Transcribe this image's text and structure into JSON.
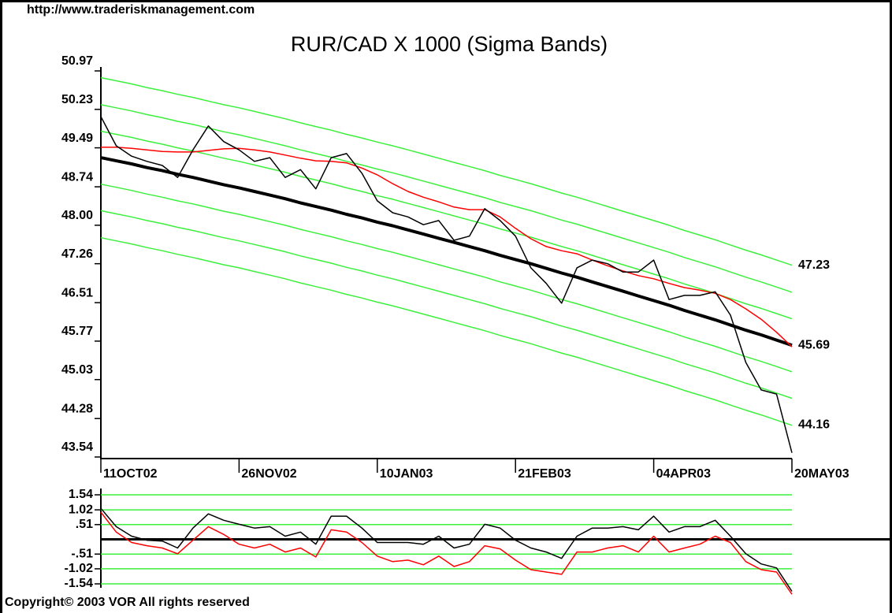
{
  "header": {
    "url": "http://www.traderiskmanagement.com"
  },
  "footer": {
    "copyright": "Copyright© 2003 VOR All rights reserved"
  },
  "chart_data": [
    {
      "type": "line",
      "title": "RUR/CAD X 1000 (Sigma Bands)",
      "categories": [
        "11OCT02",
        null,
        null,
        null,
        null,
        null,
        null,
        null,
        null,
        "26NOV02",
        null,
        null,
        null,
        null,
        null,
        null,
        null,
        null,
        "10JAN03",
        null,
        null,
        null,
        null,
        null,
        null,
        null,
        null,
        "21FEB03",
        null,
        null,
        null,
        null,
        null,
        null,
        null,
        null,
        "04APR03",
        null,
        null,
        null,
        null,
        null,
        null,
        null,
        null,
        "20MAY03"
      ],
      "ylim": [
        43.54,
        50.97
      ],
      "yticks": [
        50.97,
        50.23,
        49.49,
        48.74,
        {
          "value": 48,
          "label": "48.00"
        },
        47.26,
        46.51,
        45.77,
        45.03,
        44.28,
        43.54
      ],
      "annotations": [
        {
          "text": "47.23"
        },
        {
          "text": "45.69"
        },
        {
          "text": "44.16"
        }
      ],
      "series": [
        {
          "color": "#3cf03c",
          "line_width": 1.5,
          "values": [
            50.84,
            50.78,
            50.72,
            50.65,
            50.59,
            50.52,
            50.46,
            50.39,
            50.32,
            50.26,
            50.19,
            50.12,
            50.05,
            49.97,
            49.9,
            49.83,
            49.75,
            49.68,
            49.6,
            49.53,
            49.45,
            49.37,
            49.29,
            49.21,
            49.13,
            49.05,
            48.96,
            48.88,
            48.8,
            48.71,
            48.62,
            48.54,
            48.45,
            48.36,
            48.27,
            48.18,
            48.09,
            48.0,
            47.9,
            47.81,
            47.72,
            47.62,
            47.52,
            47.43,
            47.33,
            47.23
          ]
        },
        {
          "color": "#3cf03c",
          "line_width": 1.5,
          "values": [
            50.32,
            50.26,
            50.2,
            50.13,
            50.07,
            50.0,
            49.94,
            49.87,
            49.8,
            49.74,
            49.67,
            49.6,
            49.53,
            49.45,
            49.38,
            49.31,
            49.23,
            49.16,
            49.08,
            49.01,
            48.93,
            48.85,
            48.77,
            48.69,
            48.61,
            48.53,
            48.44,
            48.36,
            48.28,
            48.19,
            48.1,
            48.02,
            47.93,
            47.84,
            47.75,
            47.66,
            47.57,
            47.48,
            47.38,
            47.29,
            47.2,
            47.1,
            47.0,
            46.91,
            46.81,
            46.71
          ]
        },
        {
          "color": "#3cf03c",
          "line_width": 1.5,
          "values": [
            49.81,
            49.75,
            49.69,
            49.62,
            49.56,
            49.49,
            49.43,
            49.36,
            49.29,
            49.23,
            49.16,
            49.09,
            49.02,
            48.94,
            48.87,
            48.8,
            48.72,
            48.65,
            48.57,
            48.5,
            48.42,
            48.34,
            48.26,
            48.18,
            48.1,
            48.02,
            47.93,
            47.85,
            47.77,
            47.68,
            47.59,
            47.51,
            47.42,
            47.33,
            47.24,
            47.15,
            47.06,
            46.97,
            46.87,
            46.78,
            46.69,
            46.59,
            46.49,
            46.4,
            46.3,
            46.2
          ]
        },
        {
          "color": "#3cf03c",
          "line_width": 1.5,
          "values": [
            48.79,
            48.73,
            48.67,
            48.6,
            48.54,
            48.47,
            48.41,
            48.34,
            48.27,
            48.21,
            48.14,
            48.07,
            48.0,
            47.92,
            47.85,
            47.78,
            47.7,
            47.63,
            47.55,
            47.48,
            47.4,
            47.32,
            47.24,
            47.16,
            47.08,
            47.0,
            46.91,
            46.83,
            46.75,
            46.66,
            46.57,
            46.49,
            46.4,
            46.31,
            46.22,
            46.13,
            46.04,
            45.95,
            45.85,
            45.76,
            45.67,
            45.57,
            45.47,
            45.38,
            45.28,
            45.18
          ]
        },
        {
          "color": "#3cf03c",
          "line_width": 1.5,
          "values": [
            48.28,
            48.22,
            48.16,
            48.09,
            48.03,
            47.96,
            47.9,
            47.83,
            47.76,
            47.7,
            47.63,
            47.56,
            47.49,
            47.41,
            47.34,
            47.27,
            47.19,
            47.12,
            47.04,
            46.97,
            46.89,
            46.81,
            46.73,
            46.65,
            46.57,
            46.49,
            46.4,
            46.32,
            46.24,
            46.15,
            46.06,
            45.98,
            45.89,
            45.8,
            45.71,
            45.62,
            45.53,
            45.44,
            45.34,
            45.25,
            45.16,
            45.06,
            44.96,
            44.87,
            44.77,
            44.67
          ]
        },
        {
          "color": "#3cf03c",
          "line_width": 1.5,
          "values": [
            47.76,
            47.7,
            47.64,
            47.57,
            47.51,
            47.44,
            47.38,
            47.31,
            47.24,
            47.18,
            47.11,
            47.04,
            46.97,
            46.89,
            46.82,
            46.75,
            46.67,
            46.6,
            46.52,
            46.45,
            46.37,
            46.29,
            46.21,
            46.13,
            46.05,
            45.97,
            45.88,
            45.8,
            45.72,
            45.63,
            45.54,
            45.46,
            45.37,
            45.28,
            45.19,
            45.1,
            45.01,
            44.92,
            44.82,
            44.73,
            44.64,
            44.54,
            44.44,
            44.35,
            44.25,
            44.15
          ]
        },
        {
          "color": "#000000",
          "line_width": 4,
          "values": [
            49.3,
            49.24,
            49.18,
            49.11,
            49.05,
            48.98,
            48.92,
            48.85,
            48.78,
            48.72,
            48.65,
            48.58,
            48.51,
            48.43,
            48.36,
            48.29,
            48.21,
            48.14,
            48.06,
            47.99,
            47.91,
            47.83,
            47.75,
            47.67,
            47.59,
            47.51,
            47.42,
            47.34,
            47.26,
            47.17,
            47.08,
            47.0,
            46.91,
            46.82,
            46.73,
            46.64,
            46.55,
            46.46,
            46.36,
            46.27,
            46.18,
            46.08,
            45.98,
            45.89,
            45.79,
            45.69
          ]
        },
        {
          "color": "#ff0000",
          "line_width": 1.5,
          "values": [
            49.5,
            49.5,
            49.48,
            49.45,
            49.42,
            49.41,
            49.41,
            49.44,
            49.47,
            49.48,
            49.45,
            49.41,
            49.35,
            49.29,
            49.24,
            49.23,
            49.2,
            49.1,
            48.97,
            48.8,
            48.65,
            48.54,
            48.45,
            48.35,
            48.3,
            48.3,
            48.16,
            47.94,
            47.74,
            47.59,
            47.51,
            47.45,
            47.33,
            47.22,
            47.12,
            47.03,
            46.97,
            46.88,
            46.8,
            46.75,
            46.69,
            46.57,
            46.39,
            46.19,
            45.94,
            45.66
          ]
        },
        {
          "color": "#000000",
          "line_width": 1.5,
          "values": [
            50.09,
            49.53,
            49.33,
            49.23,
            49.15,
            48.92,
            49.45,
            49.91,
            49.61,
            49.45,
            49.23,
            49.3,
            48.92,
            49.07,
            48.7,
            49.3,
            49.38,
            49.0,
            48.47,
            48.24,
            48.16,
            48.01,
            48.09,
            47.71,
            47.79,
            48.32,
            48.09,
            47.79,
            47.18,
            46.88,
            46.5,
            47.18,
            47.33,
            47.26,
            47.1,
            47.1,
            47.33,
            46.57,
            46.65,
            46.65,
            46.72,
            46.27,
            45.36,
            44.83,
            44.75,
            43.62
          ]
        }
      ]
    },
    {
      "type": "line",
      "ylim": [
        -1.54,
        1.54
      ],
      "yticks": [
        1.54,
        1.02,
        {
          "value": 0.51,
          "label": ".51"
        },
        {
          "value": -0.51,
          "label": "-.51"
        },
        -1.02,
        -1.54
      ],
      "grid": true,
      "grid_color": "#3cf03c",
      "series": [
        {
          "color": "#ff0000",
          "line_width": 1.5,
          "values": [
            0.94,
            0.25,
            -0.11,
            -0.22,
            -0.3,
            -0.5,
            -0.03,
            0.44,
            0.17,
            -0.17,
            -0.3,
            -0.17,
            -0.44,
            -0.3,
            -0.61,
            0.33,
            0.25,
            -0.11,
            -0.58,
            -0.77,
            -0.72,
            -0.88,
            -0.58,
            -0.94,
            -0.77,
            -0.22,
            -0.33,
            -0.72,
            -1.05,
            -1.13,
            -1.21,
            -0.44,
            -0.44,
            -0.3,
            -0.22,
            -0.44,
            0.11,
            -0.44,
            -0.3,
            -0.17,
            0.11,
            -0.11,
            -0.77,
            -1.05,
            -1.13,
            -1.9
          ]
        },
        {
          "color": "#000000",
          "line_width": 1.5,
          "values": [
            1.07,
            0.44,
            0.11,
            -0.03,
            -0.06,
            -0.3,
            0.39,
            0.88,
            0.66,
            0.52,
            0.39,
            0.44,
            0.11,
            0.25,
            -0.17,
            0.8,
            0.8,
            0.39,
            -0.11,
            -0.11,
            -0.11,
            -0.17,
            0.11,
            -0.3,
            -0.17,
            0.52,
            0.39,
            -0.03,
            -0.3,
            -0.44,
            -0.66,
            0.11,
            0.39,
            0.39,
            0.44,
            0.33,
            0.8,
            0.25,
            0.44,
            0.44,
            0.66,
            0.11,
            -0.5,
            -0.85,
            -0.99,
            -1.8
          ]
        }
      ]
    }
  ]
}
